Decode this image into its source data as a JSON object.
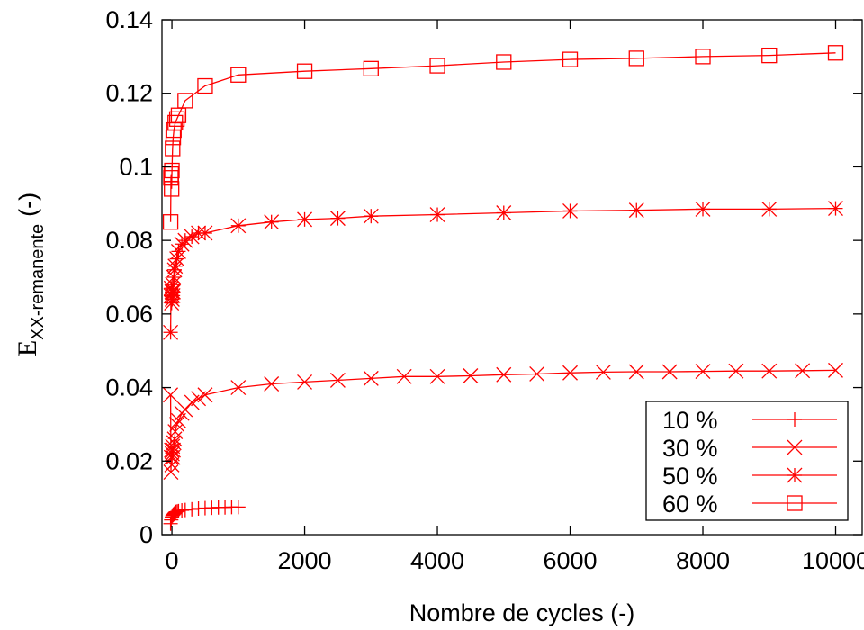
{
  "colors": {
    "series": "#ff0000",
    "axis": "#000000",
    "background": "#ffffff"
  },
  "chart_data": {
    "type": "line",
    "xlabel": "Nombre de cycles (-)",
    "ylabel": {
      "main": "E",
      "subscript": "XX-remanente",
      "unit": "(-)"
    },
    "xlim": [
      -150,
      10400
    ],
    "ylim": [
      0,
      0.14
    ],
    "xticks": [
      0,
      2000,
      4000,
      6000,
      8000,
      10000
    ],
    "xtick_labels": [
      "0",
      "2000",
      "4000",
      "6000",
      "8000",
      "10000"
    ],
    "yticks": [
      0,
      0.02,
      0.04,
      0.06,
      0.08,
      0.1,
      0.12,
      0.14
    ],
    "ytick_labels": [
      "0",
      "0.02",
      "0.04",
      "0.06",
      "0.08",
      "0.1",
      "0.12",
      "0.14"
    ],
    "grid": false,
    "legend_position": "bottom-right",
    "series": [
      {
        "name": "10 %",
        "marker": "plus",
        "x": [
          -20,
          -10,
          0,
          10,
          20,
          30,
          40,
          50,
          60,
          80,
          100,
          150,
          200,
          300,
          400,
          500,
          600,
          700,
          800,
          900,
          1000
        ],
        "y": [
          0.003,
          0.004,
          0.0048,
          0.0052,
          0.0054,
          0.0056,
          0.0058,
          0.006,
          0.0062,
          0.0063,
          0.0064,
          0.0066,
          0.0067,
          0.0069,
          0.0071,
          0.0072,
          0.0073,
          0.0074,
          0.0074,
          0.0075,
          0.0075
        ]
      },
      {
        "name": "30 %",
        "marker": "x",
        "x": [
          -20,
          -15,
          -10,
          -5,
          0,
          5,
          10,
          15,
          20,
          30,
          40,
          50,
          75,
          100,
          150,
          200,
          300,
          400,
          500,
          1000,
          1500,
          2000,
          2500,
          3000,
          3500,
          4000,
          4500,
          5000,
          5500,
          6000,
          6500,
          7000,
          7500,
          8000,
          8500,
          9000,
          9500,
          10000
        ],
        "y": [
          0.038,
          0.017,
          0.021,
          0.023,
          0.019,
          0.022,
          0.024,
          0.021,
          0.023,
          0.025,
          0.026,
          0.028,
          0.03,
          0.031,
          0.033,
          0.034,
          0.036,
          0.037,
          0.038,
          0.04,
          0.041,
          0.0415,
          0.042,
          0.0425,
          0.043,
          0.043,
          0.0432,
          0.0435,
          0.0437,
          0.044,
          0.0442,
          0.0443,
          0.0443,
          0.0444,
          0.0445,
          0.0445,
          0.0446,
          0.0447
        ]
      },
      {
        "name": "50 %",
        "marker": "star",
        "x": [
          -20,
          -15,
          -10,
          -5,
          0,
          5,
          10,
          15,
          20,
          30,
          40,
          50,
          75,
          100,
          150,
          200,
          300,
          400,
          500,
          1000,
          1500,
          2000,
          2500,
          3000,
          4000,
          5000,
          6000,
          7000,
          8000,
          9000,
          10000
        ],
        "y": [
          0.055,
          0.065,
          0.067,
          0.063,
          0.066,
          0.064,
          0.068,
          0.065,
          0.066,
          0.07,
          0.072,
          0.073,
          0.075,
          0.077,
          0.079,
          0.08,
          0.081,
          0.082,
          0.082,
          0.084,
          0.085,
          0.0857,
          0.086,
          0.0866,
          0.087,
          0.0875,
          0.088,
          0.0882,
          0.0885,
          0.0885,
          0.0887
        ]
      },
      {
        "name": "60 %",
        "marker": "square",
        "x": [
          -20,
          -15,
          -10,
          -5,
          0,
          10,
          20,
          30,
          50,
          75,
          100,
          200,
          500,
          1000,
          2000,
          3000,
          4000,
          5000,
          6000,
          7000,
          8000,
          9000,
          10000
        ],
        "y": [
          0.085,
          0.097,
          0.098,
          0.094,
          0.099,
          0.105,
          0.108,
          0.11,
          0.112,
          0.113,
          0.114,
          0.118,
          0.122,
          0.125,
          0.126,
          0.1267,
          0.1275,
          0.1285,
          0.1292,
          0.1295,
          0.13,
          0.1303,
          0.131
        ]
      }
    ]
  }
}
